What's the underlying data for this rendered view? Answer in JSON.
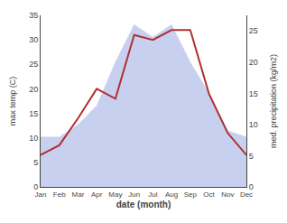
{
  "chart_data": {
    "type": "line",
    "categories": [
      "Jan",
      "Feb",
      "Mar",
      "Apr",
      "May",
      "Jun",
      "Jul",
      "Aug",
      "Sep",
      "Oct",
      "Nov",
      "Dec"
    ],
    "series": [
      {
        "type": "area",
        "axis": "y2",
        "color": "#c8d0f0",
        "values": [
          8.0,
          8.0,
          10.0,
          13.0,
          20.0,
          26.0,
          24.0,
          26.0,
          20.0,
          15.0,
          9.0,
          8.0
        ]
      },
      {
        "type": "line",
        "color": "#b03030",
        "values": [
          6.5,
          8.5,
          14.0,
          20.0,
          18.0,
          31.0,
          30.0,
          32.0,
          32.0,
          19.0,
          11.0,
          6.5
        ]
      }
    ],
    "xlabel": "date (month)",
    "ylabel": "max temp (C)",
    "y2label": "med. precipitation (kg/m2)",
    "ylim": [
      0,
      35
    ],
    "yticks": [
      0,
      5,
      10,
      15,
      20,
      25,
      30,
      35
    ],
    "y2lim": [
      0,
      27.5
    ],
    "y2ticks": [
      0,
      5,
      10,
      15,
      20,
      25
    ],
    "grid": false
  }
}
